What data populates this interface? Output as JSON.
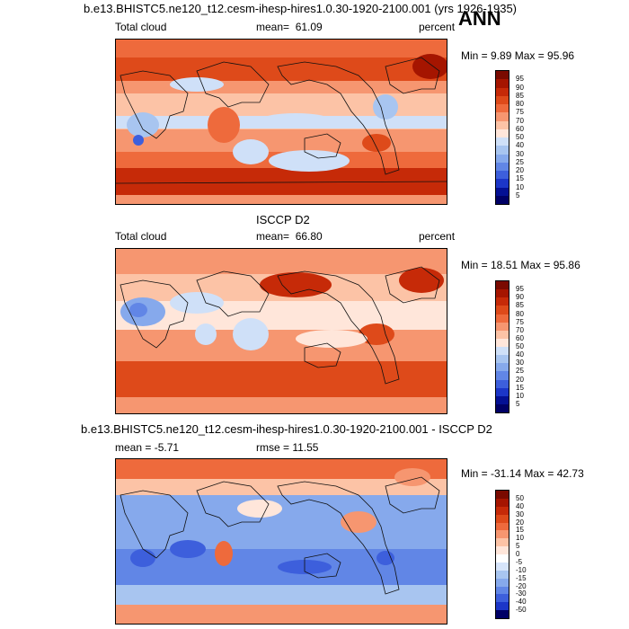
{
  "header": {
    "top_title": "b.e13.BHISTC5.ne120_t12.cesm-ihesp-hires1.0.30-1920-2100.001 (yrs 1926-1935)",
    "season": "ANN"
  },
  "panels": [
    {
      "id": "model",
      "title": "",
      "left_label": "Total cloud",
      "mean_label": "mean=",
      "mean_value": "61.09",
      "units": "percent",
      "minmax": "Min =   9.89 Max =  95.96",
      "palette": "abs",
      "colorbar_labels": [
        "95",
        "90",
        "85",
        "80",
        "75",
        "70",
        "60",
        "50",
        "40",
        "30",
        "25",
        "20",
        "15",
        "10",
        "5"
      ]
    },
    {
      "id": "obs",
      "title": "ISCCP D2",
      "left_label": "Total cloud",
      "mean_label": "mean=",
      "mean_value": "66.80",
      "units": "percent",
      "minmax": "Min =  18.51 Max =  95.86",
      "palette": "abs",
      "colorbar_labels": [
        "95",
        "90",
        "85",
        "80",
        "75",
        "70",
        "60",
        "50",
        "40",
        "30",
        "25",
        "20",
        "15",
        "10",
        "5"
      ]
    },
    {
      "id": "diff",
      "title": "b.e13.BHISTC5.ne120_t12.cesm-ihesp-hires1.0.30-1920-2100.001 - ISCCP D2",
      "left_label": "mean =  -5.71",
      "rmse_label": "rmse =  11.55",
      "minmax": "Min = -31.14 Max =  42.73",
      "palette": "diff",
      "colorbar_labels": [
        "50",
        "40",
        "30",
        "20",
        "15",
        "10",
        "5",
        "0",
        "-5",
        "-10",
        "-15",
        "-20",
        "-30",
        "-40",
        "-50"
      ]
    }
  ],
  "colors": {
    "abs_palette": [
      "#7a0a00",
      "#a51500",
      "#c62a08",
      "#de4a1a",
      "#ee6a3c",
      "#f69670",
      "#fcc3a6",
      "#ffe6da",
      "#cfe0f8",
      "#a8c5f0",
      "#86a9ec",
      "#6186e6",
      "#3d5fdc",
      "#1c36c8",
      "#041094",
      "#000066"
    ],
    "diff_palette": [
      "#7a0a00",
      "#a51500",
      "#c62a08",
      "#de4a1a",
      "#ee6a3c",
      "#f69670",
      "#fcc3a6",
      "#ffe6da",
      "#ffffff",
      "#d6e4fa",
      "#a8c5f0",
      "#86a9ec",
      "#6186e6",
      "#3d5fdc",
      "#1c36c8",
      "#000066"
    ]
  }
}
